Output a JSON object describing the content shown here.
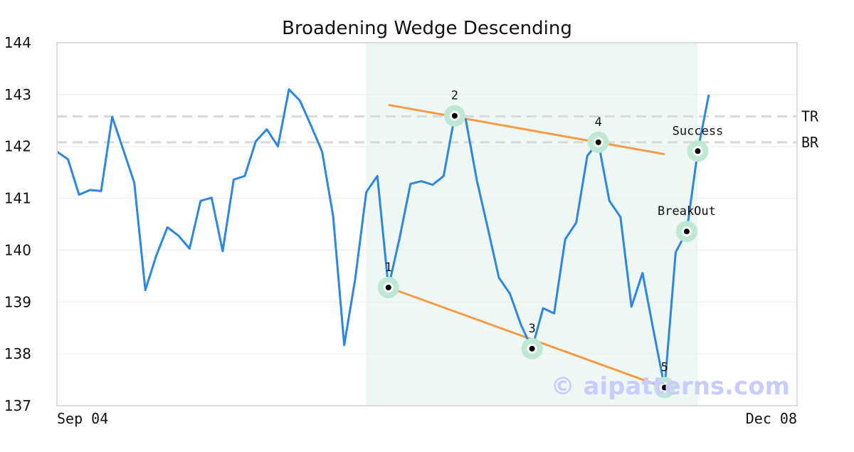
{
  "chart_data": {
    "type": "line",
    "title": "Broadening Wedge Descending",
    "xlabel": "",
    "ylabel": "",
    "ylim": [
      137,
      144
    ],
    "yticks": [
      137,
      138,
      139,
      140,
      141,
      142,
      143,
      144
    ],
    "x_tick_labels": [
      "Sep 04",
      "Dec 08"
    ],
    "grid": true,
    "colors": {
      "price": "#2b87e0",
      "trendline": "#f59c44",
      "highlight": "#eef7f3",
      "marker_halo": "#bfe8d4",
      "reference": "#d9d9d9",
      "watermark": "#c9ccff"
    },
    "series": [
      {
        "values": [
          141.9,
          141.75,
          141.07,
          141.16,
          141.14,
          142.57,
          141.94,
          141.3,
          139.23,
          139.9,
          140.44,
          140.28,
          140.03,
          140.95,
          141.01,
          139.98,
          141.36,
          141.43,
          142.1,
          142.33,
          142.0,
          143.1,
          142.88,
          142.4,
          141.9,
          140.65,
          138.17,
          139.45,
          141.12,
          141.43,
          139.28,
          140.22,
          141.28,
          141.33,
          141.26,
          141.43,
          142.59,
          142.52,
          141.35,
          140.42,
          139.47,
          139.16,
          138.56,
          138.1,
          138.88,
          138.78,
          140.21,
          140.53,
          141.82,
          142.08,
          140.95,
          140.64,
          138.91,
          139.56,
          138.44,
          137.35,
          139.96,
          140.36,
          141.91,
          143.0
        ]
      }
    ],
    "highlight_range": {
      "start_index": 28,
      "end_index": 58
    },
    "pattern_points": [
      {
        "label": "1",
        "index": 30,
        "value": 139.28
      },
      {
        "label": "2",
        "index": 36,
        "value": 142.59
      },
      {
        "label": "3",
        "index": 43,
        "value": 138.1
      },
      {
        "label": "4",
        "index": 49,
        "value": 142.08
      },
      {
        "label": "5",
        "index": 55,
        "value": 137.35
      }
    ],
    "annotations": [
      {
        "label": "BreakOut",
        "index": 57,
        "value": 140.36
      },
      {
        "label": "Success",
        "index": 58,
        "value": 141.91
      }
    ],
    "trendlines": [
      {
        "from_index": 30,
        "from_value": 142.8,
        "to_index": 55,
        "to_value": 141.85
      },
      {
        "from_index": 30,
        "from_value": 139.28,
        "to_index": 55,
        "to_value": 137.35
      }
    ],
    "reference_lines": [
      {
        "label": "TR",
        "value": 142.58
      },
      {
        "label": "BR",
        "value": 142.08
      }
    ],
    "watermark": "© aipatterns.com"
  }
}
